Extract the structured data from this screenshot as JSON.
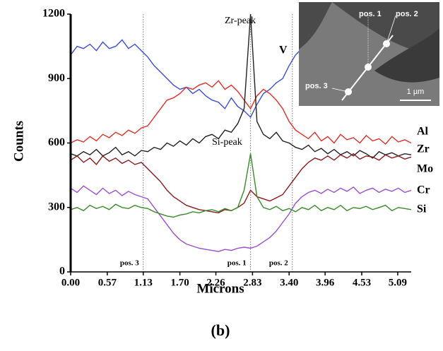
{
  "chart_data": {
    "type": "line",
    "caption": "(b)",
    "x_label": "Microns",
    "y_label": "Counts",
    "annotations": [
      "Zr-peak",
      "Si-peak"
    ],
    "x": [
      0,
      0.1,
      0.2,
      0.3,
      0.4,
      0.5,
      0.6,
      0.7,
      0.8,
      0.9,
      1.0,
      1.1,
      1.2,
      1.3,
      1.4,
      1.5,
      1.6,
      1.7,
      1.8,
      1.9,
      2.0,
      2.1,
      2.2,
      2.3,
      2.4,
      2.5,
      2.6,
      2.7,
      2.8,
      2.9,
      3.0,
      3.1,
      3.2,
      3.3,
      3.4,
      3.5,
      3.6,
      3.7,
      3.8,
      3.9,
      4.0,
      4.1,
      4.2,
      4.3,
      4.4,
      4.5,
      4.6,
      4.7,
      4.8,
      4.9,
      5.0,
      5.1,
      5.2,
      5.3
    ],
    "series": [
      {
        "name": "V",
        "color": "#3a4fd8",
        "values": [
          1010,
          1050,
          1040,
          1060,
          1030,
          1070,
          1040,
          1050,
          1080,
          1040,
          1060,
          1030,
          1000,
          960,
          930,
          900,
          870,
          850,
          860,
          830,
          850,
          820,
          800,
          790,
          760,
          810,
          770,
          750,
          720,
          780,
          830,
          850,
          880,
          900,
          960,
          1010,
          1040,
          1000,
          1060,
          1030,
          1050,
          1040,
          1060,
          1050,
          1030,
          1070,
          1040,
          1050,
          1060,
          1040,
          1050,
          1060,
          1040,
          1050
        ]
      },
      {
        "name": "Al",
        "color": "#e0302a",
        "values": [
          600,
          615,
          605,
          630,
          610,
          640,
          625,
          650,
          635,
          660,
          645,
          670,
          680,
          720,
          760,
          800,
          810,
          830,
          860,
          850,
          870,
          880,
          860,
          890,
          850,
          870,
          840,
          800,
          760,
          820,
          850,
          830,
          800,
          760,
          700,
          660,
          640,
          620,
          650,
          610,
          630,
          600,
          640,
          615,
          625,
          600,
          635,
          610,
          620,
          595,
          630,
          605,
          615,
          600
        ]
      },
      {
        "name": "Zr",
        "color": "#222222",
        "values": [
          550,
          540,
          560,
          545,
          570,
          540,
          555,
          580,
          545,
          560,
          540,
          565,
          560,
          580,
          570,
          600,
          585,
          610,
          590,
          620,
          600,
          630,
          640,
          620,
          660,
          650,
          690,
          760,
          1200,
          700,
          640,
          620,
          650,
          610,
          600,
          580,
          570,
          590,
          560,
          575,
          550,
          570,
          545,
          560,
          540,
          565,
          550,
          530,
          560,
          545,
          555,
          540,
          550,
          545
        ]
      },
      {
        "name": "Mo",
        "color": "#8b1a1a",
        "values": [
          520,
          540,
          510,
          530,
          500,
          540,
          515,
          530,
          505,
          520,
          500,
          510,
          480,
          450,
          420,
          380,
          350,
          330,
          310,
          300,
          290,
          285,
          280,
          275,
          290,
          285,
          300,
          320,
          380,
          350,
          340,
          330,
          345,
          360,
          400,
          440,
          480,
          510,
          530,
          520,
          540,
          520,
          545,
          530,
          550,
          525,
          540,
          535,
          520,
          545,
          530,
          540,
          525,
          535
        ]
      },
      {
        "name": "Cr",
        "color": "#9b4fd0",
        "values": [
          390,
          370,
          400,
          380,
          360,
          390,
          365,
          380,
          355,
          375,
          360,
          350,
          340,
          300,
          260,
          220,
          180,
          150,
          130,
          120,
          110,
          105,
          100,
          95,
          105,
          100,
          110,
          115,
          110,
          120,
          140,
          160,
          190,
          230,
          270,
          320,
          350,
          370,
          380,
          365,
          385,
          370,
          390,
          375,
          395,
          365,
          380,
          390,
          370,
          385,
          375,
          390,
          370,
          380
        ]
      },
      {
        "name": "Si",
        "color": "#3a8a2a",
        "values": [
          290,
          300,
          285,
          310,
          295,
          305,
          290,
          315,
          300,
          295,
          310,
          300,
          295,
          280,
          270,
          260,
          255,
          265,
          270,
          280,
          275,
          285,
          290,
          280,
          295,
          285,
          300,
          380,
          550,
          350,
          300,
          290,
          305,
          285,
          295,
          280,
          300,
          290,
          310,
          285,
          300,
          290,
          310,
          285,
          300,
          295,
          305,
          290,
          300,
          310,
          285,
          300,
          295,
          290
        ]
      }
    ],
    "positions": [
      {
        "label": "pos. 3",
        "x": 1.13
      },
      {
        "label": "pos. 1",
        "x": 2.8
      },
      {
        "label": "pos. 2",
        "x": 3.45
      }
    ],
    "xlim": [
      0,
      5.3
    ],
    "ylim": [
      0,
      1200
    ],
    "xticks": [
      {
        "value": 0,
        "label": "0.00"
      },
      {
        "value": 0.57,
        "label": "0.57"
      },
      {
        "value": 1.13,
        "label": "1.13"
      },
      {
        "value": 1.7,
        "label": "1.70"
      },
      {
        "value": 2.26,
        "label": "2.26"
      },
      {
        "value": 2.83,
        "label": "2.83"
      },
      {
        "value": 3.4,
        "label": "3.40"
      },
      {
        "value": 3.96,
        "label": "3.96"
      },
      {
        "value": 4.53,
        "label": "4.53"
      },
      {
        "value": 5.09,
        "label": "5.09"
      }
    ],
    "yticks": [
      0,
      300,
      600,
      900,
      1200
    ]
  },
  "inset": {
    "labels": [
      "pos. 1",
      "pos. 2",
      "pos. 3",
      "1 µm"
    ]
  }
}
